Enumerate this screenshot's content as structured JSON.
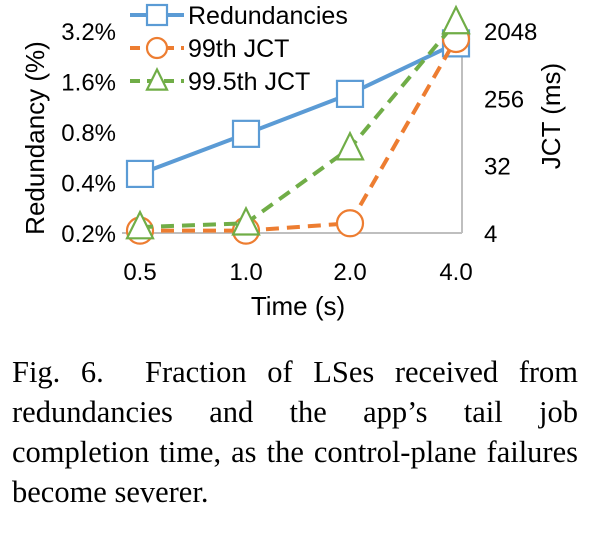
{
  "chart_data": {
    "type": "line",
    "categories": [
      "0.5",
      "1.0",
      "2.0",
      "4.0"
    ],
    "xlabel": "Time (s)",
    "ylabel_left": "Redundancy (%)",
    "ylabel_right": "JCT (ms)",
    "left_axis": {
      "scale": "log2",
      "ticks": [
        "0.2%",
        "0.4%",
        "0.8%",
        "1.6%",
        "3.2%"
      ],
      "tick_values": [
        0.2,
        0.4,
        0.8,
        1.6,
        3.2
      ],
      "ylim": [
        0.2,
        3.2
      ]
    },
    "right_axis": {
      "scale": "log2",
      "ticks": [
        "4",
        "32",
        "256",
        "2048"
      ],
      "tick_values": [
        4,
        32,
        256,
        2048
      ],
      "ylim": [
        4,
        2048
      ]
    },
    "series": [
      {
        "name": "Redundancies",
        "axis": "left",
        "values": [
          0.45,
          0.78,
          1.35,
          2.7
        ],
        "color": "#5b9bd5",
        "marker": "square",
        "dash": "solid"
      },
      {
        "name": "99th JCT",
        "axis": "right",
        "values": [
          4.3,
          4.3,
          5.4,
          1600
        ],
        "color": "#ed7d31",
        "marker": "circle",
        "dash": "dash"
      },
      {
        "name": "99.5th JCT",
        "axis": "right",
        "values": [
          4.8,
          5.4,
          55,
          2700
        ],
        "color": "#70ad47",
        "marker": "triangle",
        "dash": "dash"
      }
    ],
    "legend_position": "top-left",
    "grid": false
  },
  "caption": {
    "label": "Fig. 6.",
    "text": "Fraction of LSes received from redundancies and the app’s tail job completion time, as the control-plane failures become severer."
  }
}
